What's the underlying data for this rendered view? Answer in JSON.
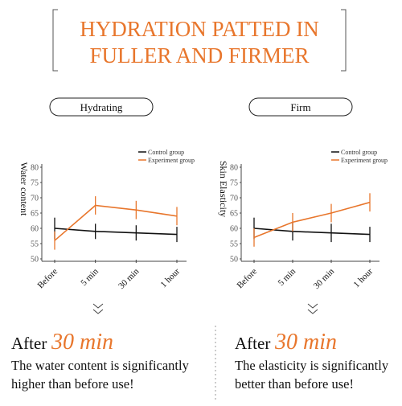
{
  "header": {
    "title_lines": [
      "HYDRATION PATTED IN",
      "FULLER AND FIRMER"
    ]
  },
  "chart_data": [
    {
      "type": "line",
      "label": "Hydrating",
      "y_label": "Water content",
      "categories": [
        "Before",
        "5 min",
        "30 min",
        "1 hour"
      ],
      "series": [
        {
          "name": "Control group",
          "color": "#111111",
          "values": [
            60,
            59,
            58.5,
            58
          ],
          "errors": [
            3.5,
            2.5,
            2.5,
            2.5
          ]
        },
        {
          "name": "Experiment group",
          "color": "#e8762c",
          "values": [
            56,
            67.5,
            66,
            64
          ],
          "errors": [
            3,
            3,
            3,
            3
          ]
        }
      ],
      "ylim": [
        50,
        80
      ],
      "yticks": [
        50,
        55,
        60,
        65,
        70,
        75,
        80
      ]
    },
    {
      "type": "line",
      "label": "Firm",
      "y_label": "Skin Elasticity",
      "categories": [
        "Before",
        "5 min",
        "30 min",
        "1 hour"
      ],
      "series": [
        {
          "name": "Control group",
          "color": "#111111",
          "values": [
            60,
            59,
            58.5,
            58
          ],
          "errors": [
            3.5,
            3,
            3,
            2.5
          ]
        },
        {
          "name": "Experiment group",
          "color": "#e8762c",
          "values": [
            57,
            62,
            65,
            68.5
          ],
          "errors": [
            3,
            3,
            3,
            3
          ]
        }
      ],
      "ylim": [
        50,
        80
      ],
      "yticks": [
        50,
        55,
        60,
        65,
        70,
        75,
        80
      ]
    }
  ],
  "captions": [
    {
      "prefix": "After",
      "highlight": "30 min",
      "lines": [
        "The water content is significantly",
        "higher than before use!"
      ]
    },
    {
      "prefix": "After",
      "highlight": "30 min",
      "lines": [
        "The elasticity is significantly",
        "better than before use!"
      ]
    }
  ]
}
